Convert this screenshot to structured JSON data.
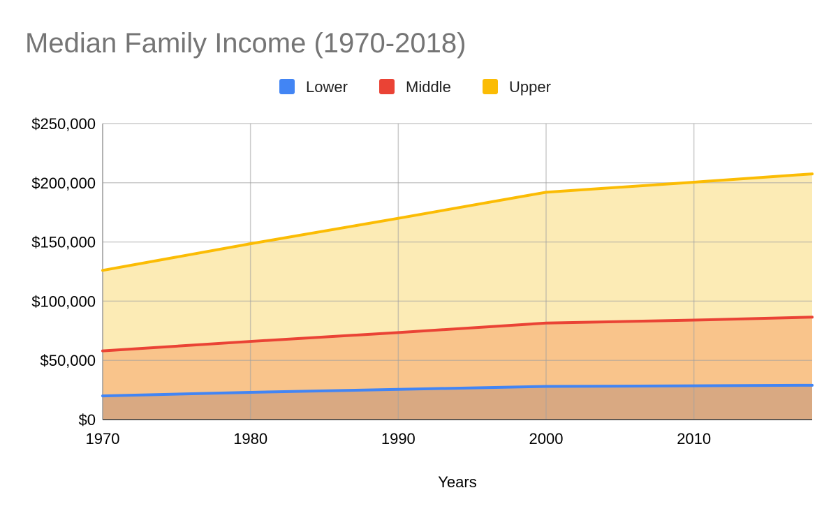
{
  "chart_data": {
    "type": "area",
    "title": "Median Family Income (1970-2018)",
    "xlabel": "Years",
    "ylabel": "",
    "x": [
      1970,
      1980,
      1990,
      2000,
      2010,
      2018
    ],
    "xlim": [
      1970,
      2018
    ],
    "ylim": [
      0,
      250000
    ],
    "y_ticks": [
      0,
      50000,
      100000,
      150000,
      200000,
      250000
    ],
    "y_tick_labels": [
      "$0",
      "$50,000",
      "$100,000",
      "$150,000",
      "$200,000",
      "$250,000"
    ],
    "x_ticks": [
      1970,
      1980,
      1990,
      2000,
      2010
    ],
    "x_tick_labels": [
      "1970",
      "1980",
      "1990",
      "2000",
      "2010"
    ],
    "grid": true,
    "legend_position": "top",
    "series": [
      {
        "name": "Lower",
        "color": "#4285F4",
        "fill": "#D9A982",
        "values": [
          20000,
          23000,
          25500,
          28000,
          28500,
          29000
        ]
      },
      {
        "name": "Middle",
        "color": "#EA4335",
        "fill": "#F9C48B",
        "values": [
          58000,
          66000,
          73500,
          81500,
          84000,
          86500
        ]
      },
      {
        "name": "Upper",
        "color": "#FBBC04",
        "fill": "#FCEBB5",
        "values": [
          126000,
          148500,
          170000,
          192000,
          200500,
          207500
        ]
      }
    ]
  }
}
